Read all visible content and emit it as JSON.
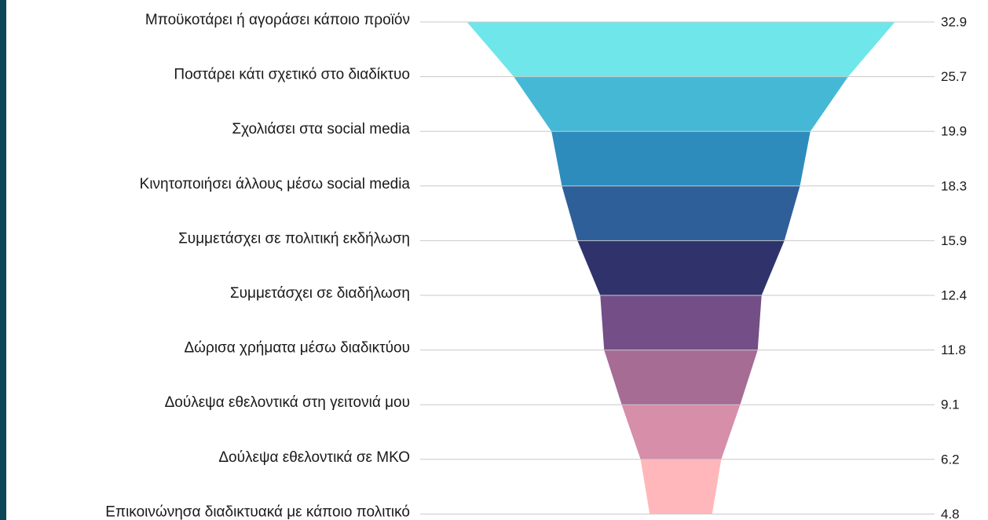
{
  "chart_data": {
    "type": "funnel",
    "categories": [
      "Μποϋκοτάρει ή αγοράσει κάποιο προϊόν",
      "Ποστάρει κάτι σχετικό στο διαδίκτυο",
      "Σχολιάσει στα social media",
      "Κινητοποιήσει άλλους μέσω social media",
      "Συμμετάσχει σε πολιτική εκδήλωση",
      "Συμμετάσχει σε διαδήλωση",
      "Δώρισα χρήματα μέσω διαδικτύου",
      "Δούλεψα εθελοντικά στη γειτονιά μου",
      "Δούλεψα εθελοντικά σε ΜΚΟ",
      "Επικοινώνησα διαδικτυακά με κάποιο πολιτικό"
    ],
    "values": [
      32.9,
      25.7,
      19.9,
      18.3,
      15.9,
      12.4,
      11.8,
      9.1,
      6.2,
      4.8
    ],
    "colors": [
      "#6ee6ea",
      "#45b8d6",
      "#2e8cbd",
      "#2f5f98",
      "#30336b",
      "#744e86",
      "#a66c94",
      "#d68ea9",
      "#ffb7bb"
    ]
  }
}
